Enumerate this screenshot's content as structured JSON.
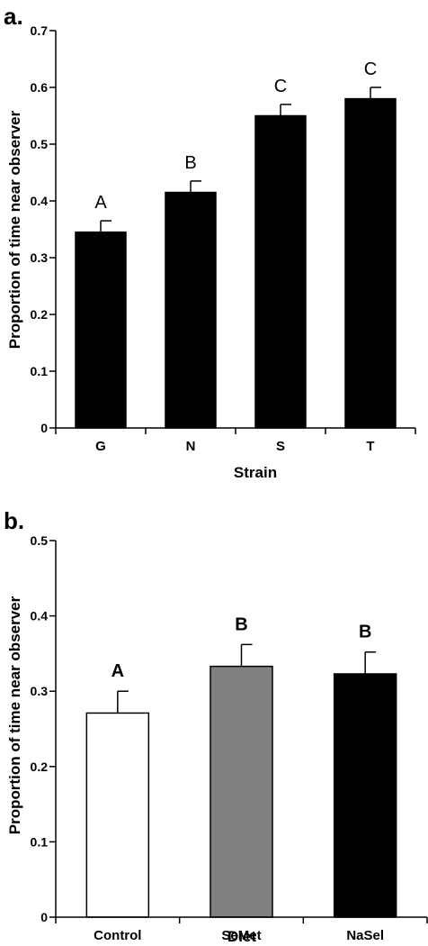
{
  "chart_data": [
    {
      "type": "bar",
      "panel_label": "a.",
      "xlabel": "Strain",
      "ylabel": "Proportion of time near observer",
      "categories": [
        "G",
        "N",
        "S",
        "T"
      ],
      "values": [
        0.345,
        0.415,
        0.55,
        0.58
      ],
      "errors": [
        0.02,
        0.02,
        0.02,
        0.02
      ],
      "significance": [
        "A",
        "B",
        "C",
        "C"
      ],
      "bar_colors": [
        "#000000",
        "#000000",
        "#000000",
        "#000000"
      ],
      "ylim": [
        0,
        0.7
      ],
      "yticks": [
        "0",
        "0.1",
        "0.2",
        "0.3",
        "0.4",
        "0.5",
        "0.6",
        "0.7"
      ],
      "grid": false,
      "legend": "none"
    },
    {
      "type": "bar",
      "panel_label": "b.",
      "xlabel": "Diet",
      "ylabel": "Proportion of time near observer",
      "categories": [
        "Control",
        "SeMet",
        "NaSel"
      ],
      "values": [
        0.271,
        0.333,
        0.323
      ],
      "errors": [
        0.029,
        0.029,
        0.029
      ],
      "significance": [
        "A",
        "B",
        "B"
      ],
      "bar_colors": [
        "#ffffff",
        "#808080",
        "#000000"
      ],
      "ylim": [
        0,
        0.5
      ],
      "yticks": [
        "0",
        "0.1",
        "0.2",
        "0.3",
        "0.4",
        "0.5"
      ],
      "grid": false,
      "legend": "none"
    }
  ]
}
